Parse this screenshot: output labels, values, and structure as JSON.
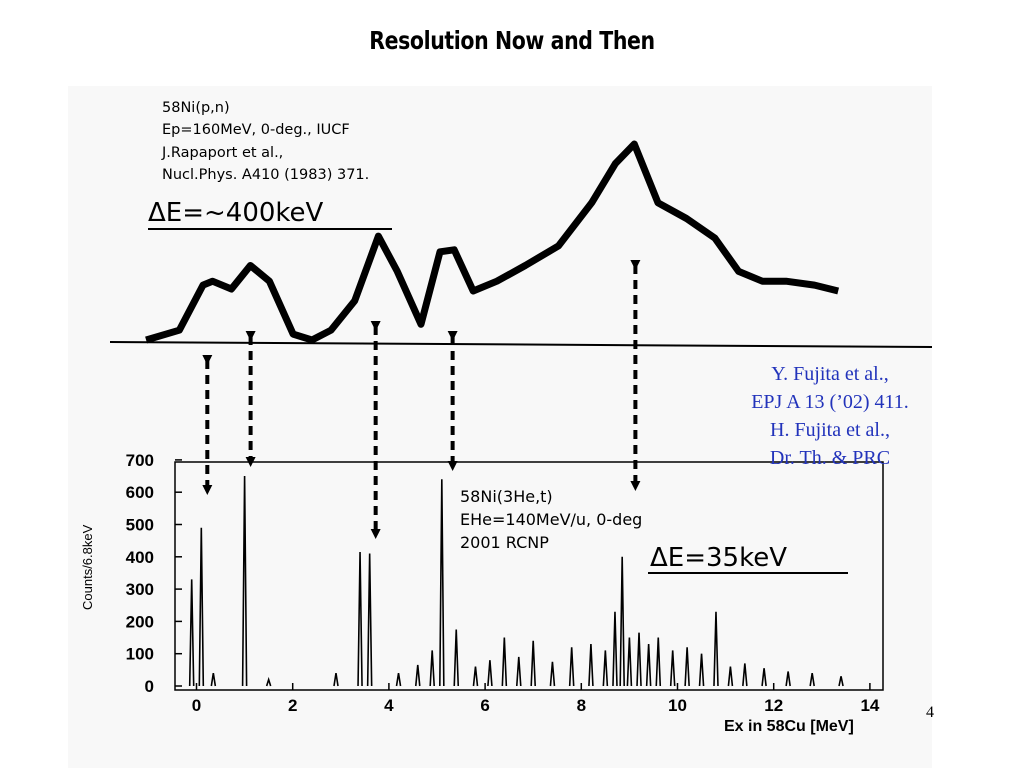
{
  "slide_title": "Resolution Now and Then",
  "top_panel": {
    "reaction_lines": [
      "58Ni(p,n)",
      "Ep=160MeV, 0-deg., IUCF",
      "J.Rapaport  et al.,",
      "Nucl.Phys.  A410 (1983) 371."
    ],
    "resolution_label": "ΔE=~400keV"
  },
  "bottom_panel": {
    "reaction_lines": [
      "58Ni(3He,t)",
      "EHe=140MeV/u, 0-deg",
      "2001 RCNP"
    ],
    "resolution_label": "ΔE=35keV",
    "ylabel": "Counts/6.8keV",
    "xlabel": "Ex  in 58Cu [MeV]"
  },
  "reference": {
    "lines": [
      "Y. Fujita et al.,",
      "EPJ A 13 (’02) 411.",
      "H. Fujita et al.,",
      "Dr. Th. & PRC"
    ]
  },
  "page_number": "4",
  "colors": {
    "reference_text": "#2233bb",
    "trace": "#000000"
  },
  "chart_data": [
    {
      "type": "line",
      "title": "58Ni(p,n), Ep=160MeV, 0-deg., IUCF",
      "xlabel": "",
      "ylabel": "",
      "ylim": [
        0,
        1
      ],
      "x": [
        -1.2,
        -0.5,
        0,
        0.2,
        0.6,
        1.0,
        1.4,
        1.9,
        2.3,
        2.7,
        3.2,
        3.7,
        4.1,
        4.6,
        5.0,
        5.3,
        5.7,
        6.2,
        6.8,
        7.5,
        8.2,
        8.7,
        9.1,
        9.6,
        10.2,
        10.8,
        11.3,
        11.8,
        12.3,
        12.9,
        13.4
      ],
      "values": [
        0.0,
        0.05,
        0.28,
        0.3,
        0.26,
        0.38,
        0.3,
        0.03,
        0.0,
        0.05,
        0.2,
        0.53,
        0.35,
        0.08,
        0.45,
        0.46,
        0.25,
        0.3,
        0.38,
        0.48,
        0.7,
        0.9,
        1.0,
        0.7,
        0.62,
        0.52,
        0.35,
        0.3,
        0.3,
        0.28,
        0.25
      ],
      "arrows_to_lower_panel_x": [
        0.1,
        1.0,
        3.6,
        5.2,
        9.0
      ]
    },
    {
      "type": "line",
      "title": "58Ni(3He,t), EHe=140MeV/u, 0-deg, 2001 RCNP",
      "xlabel": "Ex  in 58Cu [MeV]",
      "ylabel": "Counts/6.8keV",
      "xlim": [
        -0.4,
        14.2
      ],
      "ylim": [
        0,
        700
      ],
      "xticks": [
        0,
        2,
        4,
        6,
        8,
        10,
        12,
        14
      ],
      "yticks": [
        0,
        100,
        200,
        300,
        400,
        500,
        600,
        700
      ],
      "peaks": [
        {
          "x": -0.1,
          "y": 330
        },
        {
          "x": 0.1,
          "y": 490
        },
        {
          "x": 0.35,
          "y": 40
        },
        {
          "x": 1.0,
          "y": 650
        },
        {
          "x": 1.5,
          "y": 20
        },
        {
          "x": 2.9,
          "y": 40
        },
        {
          "x": 3.4,
          "y": 415
        },
        {
          "x": 3.6,
          "y": 410
        },
        {
          "x": 4.2,
          "y": 40
        },
        {
          "x": 4.6,
          "y": 65
        },
        {
          "x": 4.9,
          "y": 110
        },
        {
          "x": 5.1,
          "y": 640
        },
        {
          "x": 5.4,
          "y": 175
        },
        {
          "x": 5.8,
          "y": 60
        },
        {
          "x": 6.1,
          "y": 80
        },
        {
          "x": 6.4,
          "y": 150
        },
        {
          "x": 6.7,
          "y": 90
        },
        {
          "x": 7.0,
          "y": 140
        },
        {
          "x": 7.4,
          "y": 75
        },
        {
          "x": 7.8,
          "y": 120
        },
        {
          "x": 8.2,
          "y": 130
        },
        {
          "x": 8.5,
          "y": 110
        },
        {
          "x": 8.7,
          "y": 230
        },
        {
          "x": 8.85,
          "y": 400
        },
        {
          "x": 9.0,
          "y": 150
        },
        {
          "x": 9.2,
          "y": 165
        },
        {
          "x": 9.4,
          "y": 130
        },
        {
          "x": 9.6,
          "y": 150
        },
        {
          "x": 9.9,
          "y": 110
        },
        {
          "x": 10.2,
          "y": 120
        },
        {
          "x": 10.5,
          "y": 100
        },
        {
          "x": 10.8,
          "y": 230
        },
        {
          "x": 11.1,
          "y": 60
        },
        {
          "x": 11.4,
          "y": 70
        },
        {
          "x": 11.8,
          "y": 55
        },
        {
          "x": 12.3,
          "y": 45
        },
        {
          "x": 12.8,
          "y": 40
        },
        {
          "x": 13.4,
          "y": 30
        }
      ]
    }
  ]
}
